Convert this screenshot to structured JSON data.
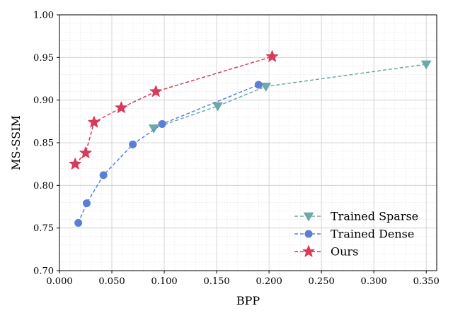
{
  "chart_data": {
    "type": "line",
    "xlabel": "BPP",
    "ylabel": "MS-SSIM",
    "xlim": [
      0.0,
      0.36
    ],
    "ylim": [
      0.7,
      1.0
    ],
    "x_ticks": [
      0.0,
      0.05,
      0.1,
      0.15,
      0.2,
      0.25,
      0.3,
      0.35
    ],
    "x_tick_labels": [
      "0.000",
      "0.050",
      "0.100",
      "0.150",
      "0.200",
      "0.250",
      "0.300",
      "0.350"
    ],
    "y_ticks": [
      0.7,
      0.75,
      0.8,
      0.85,
      0.9,
      0.95,
      1.0
    ],
    "y_tick_labels": [
      "0.70",
      "0.75",
      "0.80",
      "0.85",
      "0.90",
      "0.95",
      "1.00"
    ],
    "grid": true,
    "minor_grid": true,
    "legend_position": "bottom-right",
    "series": [
      {
        "name": "Trained Sparse",
        "color": "#6fa8a8",
        "marker": "triangle-down",
        "x": [
          0.09,
          0.151,
          0.197,
          0.35
        ],
        "y": [
          0.867,
          0.893,
          0.916,
          0.942
        ]
      },
      {
        "name": "Trained Dense",
        "color": "#5b7fd6",
        "marker": "circle",
        "x": [
          0.018,
          0.026,
          0.042,
          0.07,
          0.098,
          0.19
        ],
        "y": [
          0.756,
          0.779,
          0.812,
          0.848,
          0.872,
          0.918
        ]
      },
      {
        "name": "Ours",
        "color": "#d93a5a",
        "marker": "star",
        "x": [
          0.015,
          0.025,
          0.033,
          0.059,
          0.092,
          0.203
        ],
        "y": [
          0.825,
          0.838,
          0.874,
          0.891,
          0.91,
          0.951
        ]
      }
    ]
  }
}
